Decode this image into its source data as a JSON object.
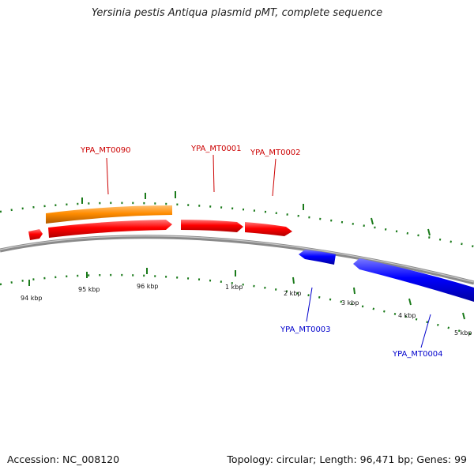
{
  "title": "Yersinia pestis Antiqua plasmid pMT, complete sequence",
  "footer": {
    "accession": "Accession: NC_008120",
    "summary": "Topology: circular; Length: 96,471 bp; Genes: 99"
  },
  "map": {
    "genome_length_bp": 96471,
    "colors": {
      "backbone": "#808080",
      "tick": "#1a7a1a",
      "forward_gene": "#ff0000",
      "reverse_gene": "#0000ff",
      "feature": "#ff8c00",
      "forward_label": "#cc0000",
      "reverse_label": "#0000cc"
    },
    "scale_labels": [
      {
        "bp": 94000,
        "label": "94 kbp"
      },
      {
        "bp": 95000,
        "label": "95 kbp"
      },
      {
        "bp": 96000,
        "label": "96 kbp"
      },
      {
        "bp": 1000,
        "label": "1 kbp"
      },
      {
        "bp": 2000,
        "label": "2 kbp"
      },
      {
        "bp": 3000,
        "label": "3 kbp"
      },
      {
        "bp": 4000,
        "label": "4 kbp"
      },
      {
        "bp": 5000,
        "label": "5 kbp"
      }
    ],
    "gene_labels": [
      {
        "id": "YPA_MT0090",
        "strand": "forward"
      },
      {
        "id": "YPA_MT0001",
        "strand": "forward"
      },
      {
        "id": "YPA_MT0002",
        "strand": "forward"
      },
      {
        "id": "YPA_MT0003",
        "strand": "reverse"
      },
      {
        "id": "YPA_MT0004",
        "strand": "reverse"
      }
    ]
  }
}
